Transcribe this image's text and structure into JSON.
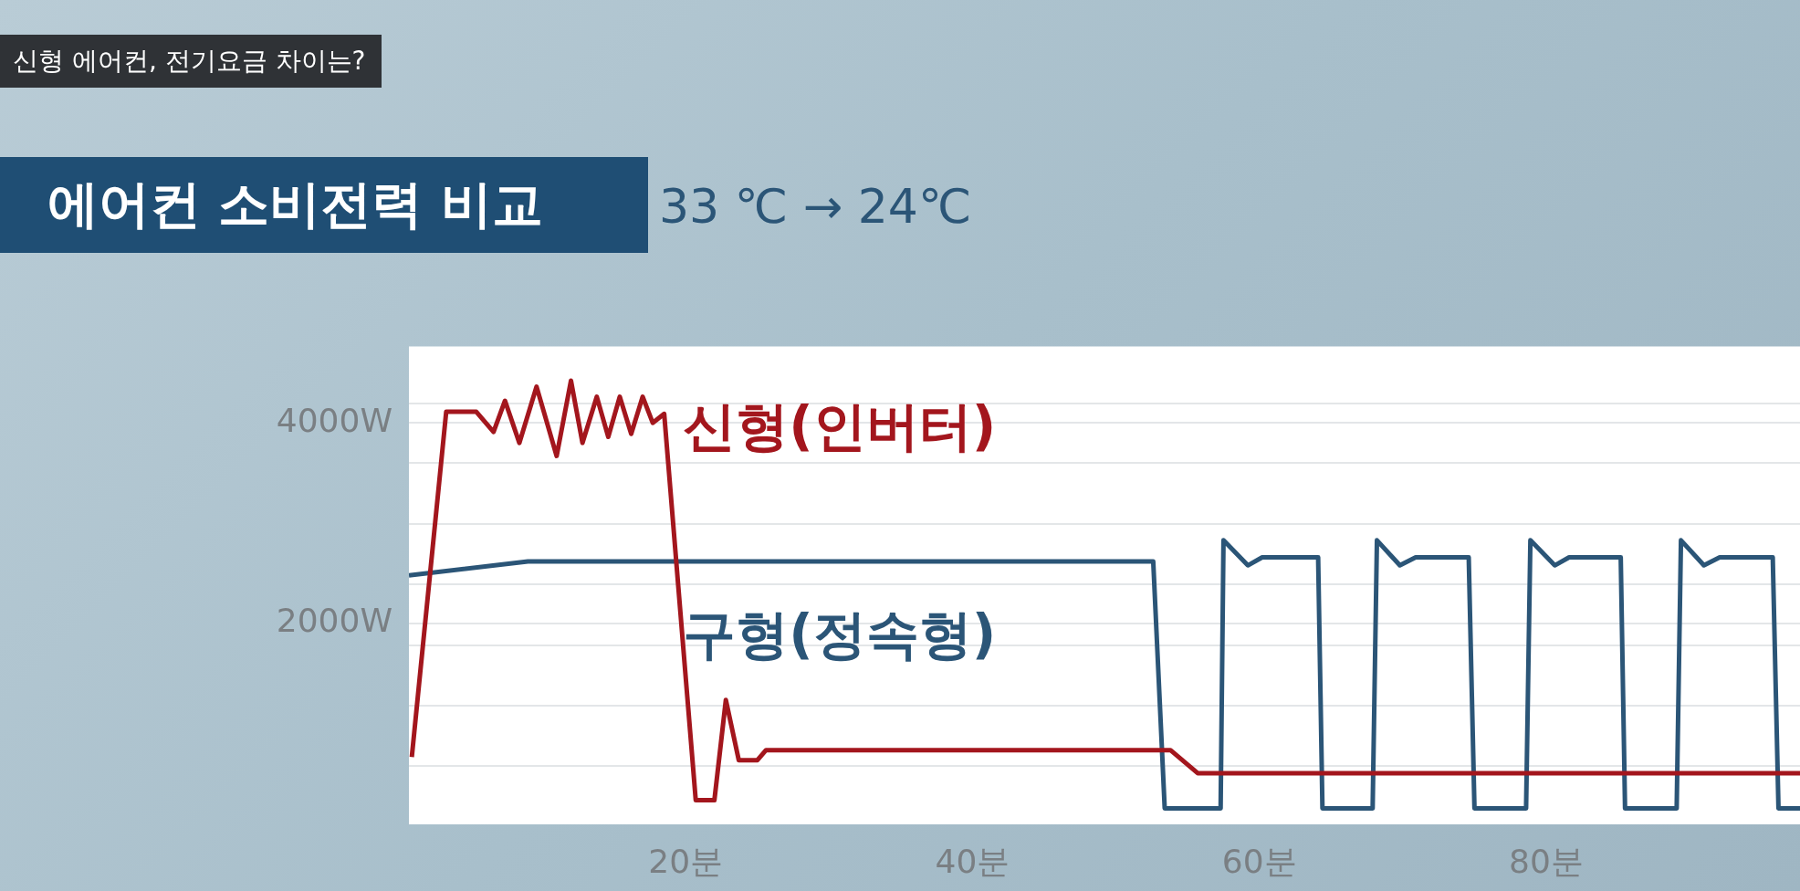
{
  "chart_data": {
    "type": "line",
    "title": "에어컨 소비전력 비교",
    "subtitle": "33 ℃ → 24℃",
    "annotations": [
      "신형 에어컨, 전기요금 차이는?"
    ],
    "xlim": [
      0.7,
      97.7
    ],
    "xticks": [
      {
        "value": 20,
        "label": "20분"
      },
      {
        "value": 40,
        "label": "40분"
      },
      {
        "value": 60,
        "label": "60분"
      },
      {
        "value": 80,
        "label": "80분"
      }
    ],
    "ylim": [
      0,
      4760
    ],
    "yticks": [
      {
        "value": 580,
        "label": null
      },
      {
        "value": 1180,
        "label": null
      },
      {
        "value": 1780,
        "label": null
      },
      {
        "value": 2000,
        "label": "2000W"
      },
      {
        "value": 2390,
        "label": null
      },
      {
        "value": 2990,
        "label": null
      },
      {
        "value": 3600,
        "label": null
      },
      {
        "value": 4000,
        "label": "4000W"
      },
      {
        "value": 4190,
        "label": null
      }
    ],
    "grid": "y",
    "marker": "none",
    "series": [
      {
        "name": "신형(인버터)",
        "color": "#a3161d",
        "x": [
          0.9,
          3.3,
          5.4,
          6.6,
          7.4,
          8.4,
          9.6,
          11.0,
          12.0,
          12.8,
          13.8,
          14.6,
          15.4,
          16.2,
          17.0,
          17.7,
          18.5,
          20.7,
          22.0,
          22.8,
          23.7,
          25.0,
          25.6,
          53.8,
          55.7,
          97.7
        ],
        "values": [
          670,
          4110,
          4110,
          3910,
          4220,
          3800,
          4360,
          3670,
          4420,
          3800,
          4260,
          3860,
          4260,
          3890,
          4260,
          4000,
          4090,
          240,
          240,
          1240,
          640,
          640,
          740,
          740,
          510,
          510
        ]
      },
      {
        "name": "구형(정속형)",
        "color": "#2b5577",
        "x": [
          0.7,
          9.0,
          52.6,
          53.4,
          57.3,
          57.5,
          59.2,
          60.2,
          64.1,
          64.4,
          67.9,
          68.2,
          69.8,
          70.9,
          74.6,
          75.0,
          78.6,
          78.9,
          80.6,
          81.6,
          85.2,
          85.5,
          89.1,
          89.4,
          91.0,
          92.1,
          95.8,
          96.2,
          97.7
        ],
        "values": [
          2480,
          2620,
          2620,
          160,
          160,
          2830,
          2580,
          2660,
          2660,
          160,
          160,
          2830,
          2580,
          2660,
          2660,
          160,
          160,
          2830,
          2580,
          2660,
          2660,
          160,
          160,
          2830,
          2580,
          2660,
          2660,
          160,
          160
        ]
      }
    ]
  }
}
